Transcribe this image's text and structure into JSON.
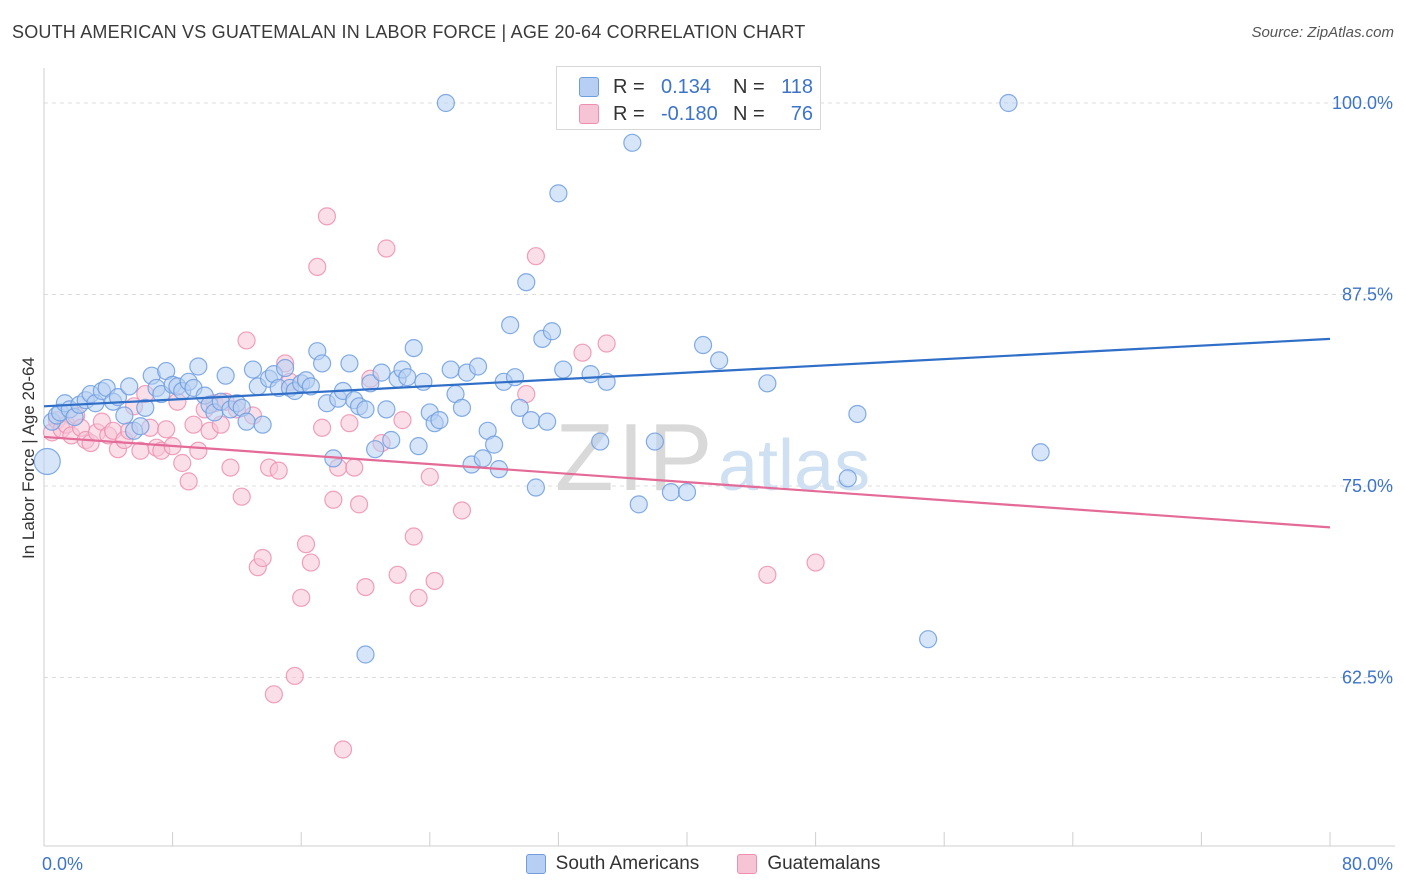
{
  "title": "SOUTH AMERICAN VS GUATEMALAN IN LABOR FORCE | AGE 20-64 CORRELATION CHART",
  "source": "Source: ZipAtlas.com",
  "watermark": {
    "zip": "ZIP",
    "atlas": "atlas"
  },
  "colors": {
    "blue": "#6f9ee0",
    "blue_fill": "#b6cff2",
    "blue_line": "#2f6fc8",
    "pink": "#ee8fb0",
    "pink_fill": "#f7c4d5",
    "pink_line": "#e46a97",
    "axis_label": "#3d74c8"
  },
  "legend_top": {
    "rows": [
      {
        "key": "R = ",
        "value": "0.134",
        "n_key": "N = ",
        "n_value": "118"
      },
      {
        "key": "R = ",
        "value": "-0.180",
        "n_key": "N = ",
        "n_value": "76"
      }
    ]
  },
  "chart_data": {
    "type": "scatter",
    "title": "SOUTH AMERICAN VS GUATEMALAN IN LABOR FORCE | AGE 20-64 CORRELATION CHART",
    "xlabel": "",
    "ylabel": "In Labor Force | Age 20-64",
    "xlim": [
      0,
      80
    ],
    "ylim": [
      51.5,
      101.5
    ],
    "x_tick_labels": [
      "0.0%",
      "80.0%"
    ],
    "y_ticks": [
      62.5,
      75.0,
      87.5,
      100.0
    ],
    "y_tick_labels": [
      "62.5%",
      "75.0%",
      "87.5%",
      "100.0%"
    ],
    "grid": "horizontal-dashed",
    "legend_position": "bottom",
    "series": [
      {
        "name": "South Americans",
        "trend": [
          [
            0,
            80.2
          ],
          [
            80,
            84.6
          ]
        ],
        "points": [
          [
            0.2,
            76.6
          ],
          [
            0.5,
            79.2
          ],
          [
            0.8,
            79.6
          ],
          [
            1.0,
            79.8
          ],
          [
            1.3,
            80.4
          ],
          [
            1.6,
            80.0
          ],
          [
            1.9,
            79.5
          ],
          [
            2.2,
            80.3
          ],
          [
            2.6,
            80.6
          ],
          [
            2.9,
            81.0
          ],
          [
            3.2,
            80.4
          ],
          [
            3.6,
            81.2
          ],
          [
            3.9,
            81.4
          ],
          [
            4.3,
            80.5
          ],
          [
            4.6,
            80.8
          ],
          [
            5.0,
            79.6
          ],
          [
            5.3,
            81.5
          ],
          [
            5.6,
            78.6
          ],
          [
            6.0,
            78.9
          ],
          [
            6.3,
            80.1
          ],
          [
            6.7,
            82.2
          ],
          [
            7.0,
            81.4
          ],
          [
            7.3,
            81.0
          ],
          [
            7.6,
            82.5
          ],
          [
            8.0,
            81.6
          ],
          [
            8.3,
            81.5
          ],
          [
            8.6,
            81.2
          ],
          [
            9.0,
            81.8
          ],
          [
            9.3,
            81.4
          ],
          [
            9.6,
            82.8
          ],
          [
            10.0,
            80.9
          ],
          [
            10.3,
            80.3
          ],
          [
            10.6,
            79.8
          ],
          [
            11.0,
            80.5
          ],
          [
            11.3,
            82.2
          ],
          [
            11.6,
            80.0
          ],
          [
            12.0,
            80.4
          ],
          [
            12.3,
            80.1
          ],
          [
            12.6,
            79.2
          ],
          [
            13.0,
            82.6
          ],
          [
            13.3,
            81.5
          ],
          [
            13.6,
            79.0
          ],
          [
            14.0,
            82.0
          ],
          [
            14.3,
            82.3
          ],
          [
            14.6,
            81.4
          ],
          [
            15.0,
            82.7
          ],
          [
            15.3,
            81.4
          ],
          [
            15.6,
            81.2
          ],
          [
            16.0,
            81.7
          ],
          [
            16.3,
            81.9
          ],
          [
            16.6,
            81.5
          ],
          [
            17.0,
            83.8
          ],
          [
            17.3,
            83.0
          ],
          [
            17.6,
            80.4
          ],
          [
            18.0,
            76.8
          ],
          [
            18.3,
            80.7
          ],
          [
            18.6,
            81.2
          ],
          [
            19.0,
            83.0
          ],
          [
            19.3,
            80.6
          ],
          [
            19.6,
            80.2
          ],
          [
            20.0,
            80.0
          ],
          [
            20.3,
            81.7
          ],
          [
            20.6,
            77.4
          ],
          [
            21.0,
            82.4
          ],
          [
            21.3,
            80.0
          ],
          [
            21.6,
            78.0
          ],
          [
            22.0,
            82.0
          ],
          [
            22.3,
            82.6
          ],
          [
            22.6,
            82.1
          ],
          [
            23.0,
            84.0
          ],
          [
            23.3,
            77.6
          ],
          [
            23.6,
            81.8
          ],
          [
            24.0,
            79.8
          ],
          [
            24.3,
            79.1
          ],
          [
            24.6,
            79.3
          ],
          [
            25.0,
            100.0
          ],
          [
            25.3,
            82.6
          ],
          [
            25.6,
            81.0
          ],
          [
            26.0,
            80.1
          ],
          [
            26.3,
            82.4
          ],
          [
            26.6,
            76.4
          ],
          [
            27.0,
            82.8
          ],
          [
            27.3,
            76.8
          ],
          [
            27.6,
            78.6
          ],
          [
            28.0,
            77.7
          ],
          [
            28.3,
            76.1
          ],
          [
            28.6,
            81.8
          ],
          [
            29.0,
            85.5
          ],
          [
            29.3,
            82.1
          ],
          [
            29.6,
            80.1
          ],
          [
            30.0,
            88.3
          ],
          [
            30.3,
            79.3
          ],
          [
            30.6,
            74.9
          ],
          [
            31.0,
            84.6
          ],
          [
            31.3,
            79.2
          ],
          [
            31.6,
            85.1
          ],
          [
            32.0,
            94.1
          ],
          [
            32.3,
            82.6
          ],
          [
            32.6,
            100.0
          ],
          [
            33.0,
            100.0
          ],
          [
            34.0,
            82.3
          ],
          [
            34.6,
            77.9
          ],
          [
            35.0,
            81.8
          ],
          [
            36.0,
            100.0
          ],
          [
            36.6,
            97.4
          ],
          [
            37.0,
            73.8
          ],
          [
            38.0,
            77.9
          ],
          [
            39.0,
            74.6
          ],
          [
            40.0,
            74.6
          ],
          [
            41.0,
            84.2
          ],
          [
            42.0,
            83.2
          ],
          [
            45.0,
            81.7
          ],
          [
            50.0,
            75.5
          ],
          [
            50.6,
            79.7
          ],
          [
            55.0,
            65.0
          ],
          [
            60.0,
            100.0
          ],
          [
            62.0,
            77.2
          ],
          [
            20.0,
            64.0
          ]
        ]
      },
      {
        "name": "Guatemalans",
        "trend": [
          [
            0,
            78.2
          ],
          [
            80,
            72.3
          ]
        ],
        "points": [
          [
            0.5,
            78.5
          ],
          [
            0.8,
            79.3
          ],
          [
            1.1,
            78.7
          ],
          [
            1.4,
            79.0
          ],
          [
            1.7,
            78.3
          ],
          [
            2.0,
            79.6
          ],
          [
            2.3,
            78.8
          ],
          [
            2.6,
            78.0
          ],
          [
            2.9,
            77.8
          ],
          [
            3.3,
            78.5
          ],
          [
            3.6,
            79.2
          ],
          [
            4.0,
            78.3
          ],
          [
            4.3,
            78.6
          ],
          [
            4.6,
            77.4
          ],
          [
            5.0,
            78.0
          ],
          [
            5.3,
            78.6
          ],
          [
            5.6,
            80.2
          ],
          [
            6.0,
            77.3
          ],
          [
            6.3,
            81.0
          ],
          [
            6.6,
            78.8
          ],
          [
            7.0,
            77.5
          ],
          [
            7.3,
            77.3
          ],
          [
            7.6,
            78.7
          ],
          [
            8.0,
            77.6
          ],
          [
            8.3,
            80.5
          ],
          [
            8.6,
            76.5
          ],
          [
            9.0,
            75.3
          ],
          [
            9.3,
            79.0
          ],
          [
            9.6,
            77.3
          ],
          [
            10.0,
            80.0
          ],
          [
            10.3,
            78.6
          ],
          [
            10.6,
            80.4
          ],
          [
            11.0,
            79.0
          ],
          [
            11.3,
            80.5
          ],
          [
            11.6,
            76.2
          ],
          [
            12.0,
            80.0
          ],
          [
            12.3,
            74.3
          ],
          [
            12.6,
            84.5
          ],
          [
            13.0,
            79.6
          ],
          [
            13.3,
            69.7
          ],
          [
            13.6,
            70.3
          ],
          [
            14.0,
            76.2
          ],
          [
            14.3,
            61.4
          ],
          [
            14.6,
            76.0
          ],
          [
            15.0,
            83.0
          ],
          [
            15.3,
            81.8
          ],
          [
            15.6,
            62.6
          ],
          [
            16.0,
            67.7
          ],
          [
            16.3,
            71.2
          ],
          [
            16.6,
            70.0
          ],
          [
            17.0,
            89.3
          ],
          [
            17.3,
            78.8
          ],
          [
            17.6,
            92.6
          ],
          [
            18.0,
            74.1
          ],
          [
            18.3,
            76.2
          ],
          [
            18.6,
            57.8
          ],
          [
            19.0,
            79.1
          ],
          [
            19.3,
            76.2
          ],
          [
            19.6,
            73.8
          ],
          [
            20.0,
            68.4
          ],
          [
            20.3,
            82.0
          ],
          [
            21.0,
            77.8
          ],
          [
            21.3,
            90.5
          ],
          [
            22.0,
            69.2
          ],
          [
            22.3,
            79.3
          ],
          [
            23.0,
            71.7
          ],
          [
            23.3,
            67.7
          ],
          [
            24.0,
            75.6
          ],
          [
            24.3,
            68.8
          ],
          [
            26.0,
            73.4
          ],
          [
            30.0,
            81.0
          ],
          [
            30.6,
            90.0
          ],
          [
            33.5,
            83.7
          ],
          [
            35.0,
            84.3
          ],
          [
            45.0,
            69.2
          ],
          [
            48.0,
            70.0
          ]
        ]
      }
    ]
  },
  "legend_bottom": {
    "items": [
      {
        "label": "South Americans"
      },
      {
        "label": "Guatemalans"
      }
    ]
  }
}
